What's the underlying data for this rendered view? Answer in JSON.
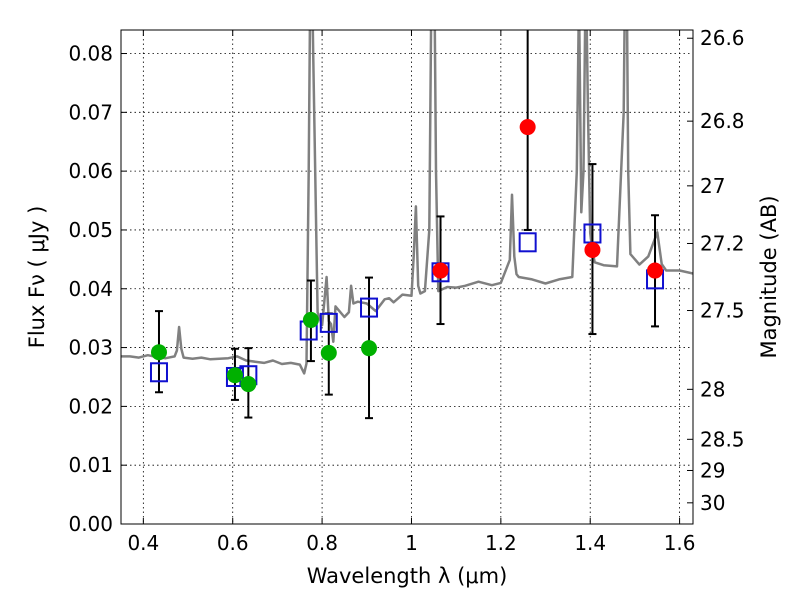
{
  "chart_data": {
    "type": "scatter",
    "xlabel": "Wavelength  λ (μm)",
    "ylabel": "Flux  Fν  ( μJy )",
    "y2label": "Magnitude (AB)",
    "xlim": [
      0.35,
      1.63
    ],
    "ylim": [
      0.0,
      0.084
    ],
    "grid": true,
    "xticks": [
      0.4,
      0.6,
      0.8,
      1.0,
      1.2,
      1.4,
      1.6
    ],
    "xtick_labels": [
      "0.4",
      "0.6",
      "0.8",
      "1",
      "1.2",
      "1.4",
      "1.6"
    ],
    "yticks": [
      0.0,
      0.01,
      0.02,
      0.03,
      0.04,
      0.05,
      0.06,
      0.07,
      0.08
    ],
    "ytick_labels": [
      "0.00",
      "0.01",
      "0.02",
      "0.03",
      "0.04",
      "0.05",
      "0.06",
      "0.07",
      "0.08"
    ],
    "y2ticks": [
      {
        "flux": 0.0826,
        "label": "26.6"
      },
      {
        "flux": 0.0685,
        "label": "26.8"
      },
      {
        "flux": 0.0575,
        "label": "27"
      },
      {
        "flux": 0.0477,
        "label": "27.2"
      },
      {
        "flux": 0.0363,
        "label": "27.5"
      },
      {
        "flux": 0.0229,
        "label": "28"
      },
      {
        "flux": 0.0144,
        "label": "28.5"
      },
      {
        "flux": 0.0091,
        "label": "29"
      },
      {
        "flux": 0.0036,
        "label": "30"
      }
    ],
    "series": [
      {
        "color": "#808080",
        "style": "line",
        "x": [
          0.35,
          0.37,
          0.39,
          0.41,
          0.43,
          0.45,
          0.47,
          0.475,
          0.48,
          0.485,
          0.49,
          0.51,
          0.53,
          0.55,
          0.57,
          0.59,
          0.61,
          0.63,
          0.65,
          0.67,
          0.69,
          0.71,
          0.73,
          0.75,
          0.76,
          0.765,
          0.77,
          0.775,
          0.78,
          0.79,
          0.8,
          0.81,
          0.815,
          0.82,
          0.825,
          0.83,
          0.85,
          0.86,
          0.865,
          0.87,
          0.88,
          0.9,
          0.92,
          0.94,
          0.95,
          0.96,
          0.98,
          1.0,
          1.005,
          1.01,
          1.015,
          1.02,
          1.03,
          1.04,
          1.045,
          1.05,
          1.055,
          1.06,
          1.08,
          1.1,
          1.12,
          1.15,
          1.18,
          1.2,
          1.22,
          1.225,
          1.23,
          1.235,
          1.24,
          1.27,
          1.3,
          1.33,
          1.36,
          1.37,
          1.375,
          1.38,
          1.385,
          1.39,
          1.395,
          1.4,
          1.405,
          1.41,
          1.43,
          1.46,
          1.475,
          1.48,
          1.485,
          1.49,
          1.51,
          1.53,
          1.55,
          1.56,
          1.57,
          1.6,
          1.63
        ],
        "y": [
          0.0285,
          0.0285,
          0.0283,
          0.0287,
          0.0284,
          0.0282,
          0.0285,
          0.0295,
          0.0335,
          0.0298,
          0.0283,
          0.0281,
          0.0283,
          0.028,
          0.0281,
          0.0282,
          0.0285,
          0.0278,
          0.0276,
          0.0274,
          0.0278,
          0.0272,
          0.0274,
          0.0271,
          0.0256,
          0.0273,
          0.06,
          0.105,
          0.08,
          0.036,
          0.0338,
          0.042,
          0.0345,
          0.034,
          0.031,
          0.037,
          0.0352,
          0.036,
          0.0405,
          0.0375,
          0.0378,
          0.0375,
          0.0362,
          0.0382,
          0.0384,
          0.0377,
          0.039,
          0.0388,
          0.0455,
          0.054,
          0.0405,
          0.0392,
          0.0396,
          0.05,
          0.095,
          0.105,
          0.06,
          0.0396,
          0.0403,
          0.0402,
          0.0405,
          0.0412,
          0.0406,
          0.041,
          0.0449,
          0.056,
          0.0455,
          0.0425,
          0.042,
          0.0416,
          0.0409,
          0.0416,
          0.042,
          0.06,
          0.09,
          0.053,
          0.06,
          0.095,
          0.07,
          0.0495,
          0.0463,
          0.0445,
          0.044,
          0.0438,
          0.07,
          0.11,
          0.06,
          0.0459,
          0.0441,
          0.0455,
          0.0496,
          0.0442,
          0.0431,
          0.0431,
          0.0426
        ]
      },
      {
        "color": "#1010d0",
        "style": "open-square",
        "x": [
          0.435,
          0.605,
          0.635,
          0.77,
          0.815,
          0.905,
          1.065,
          1.26,
          1.405,
          1.545
        ],
        "y": [
          0.0258,
          0.025,
          0.0253,
          0.0329,
          0.0342,
          0.0368,
          0.0428,
          0.0479,
          0.0494,
          0.0416
        ]
      },
      {
        "color": "#00b000",
        "style": "filled-circle",
        "x": [
          0.435,
          0.605,
          0.635,
          0.775,
          0.815,
          0.905
        ],
        "y": [
          0.0292,
          0.0253,
          0.0238,
          0.0347,
          0.0291,
          0.0299
        ],
        "yerr_low": [
          0.0068,
          0.0042,
          0.0057,
          0.007,
          0.0071,
          0.0119
        ],
        "yerr_high": [
          0.007,
          0.0045,
          0.0061,
          0.0067,
          0.0067,
          0.012
        ]
      },
      {
        "color": "#ff0000",
        "style": "filled-circle",
        "x": [
          1.065,
          1.26,
          1.405,
          1.545
        ],
        "y": [
          0.0431,
          0.0675,
          0.0466,
          0.0431
        ],
        "yerr_low": [
          0.0091,
          0.0175,
          0.0143,
          0.0095
        ],
        "yerr_high": [
          0.0092,
          0.02,
          0.0146,
          0.0094
        ]
      }
    ]
  }
}
